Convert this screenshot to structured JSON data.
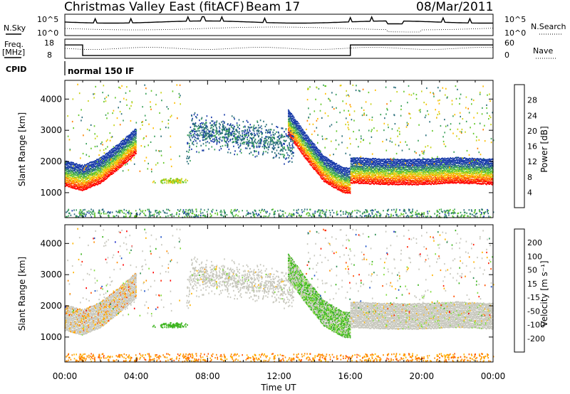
{
  "header": {
    "title": "Christmas Valley East (fitACF)",
    "beam": "Beam 17",
    "date": "08/Mar/2011"
  },
  "status_panels": {
    "nsky_label": "N.Sky",
    "nsky_ticks": [
      "10^5",
      "10^0"
    ],
    "nsearch_label": "N.Search",
    "nsearch_ticks": [
      "10^5",
      "10^0"
    ],
    "freq_label": [
      "Freq.",
      "[MHz]"
    ],
    "freq_ticks": [
      18,
      8
    ],
    "nave_label": "Nave",
    "nave_ticks": [
      60,
      0
    ],
    "cpid_label": "CPID",
    "cpid_text": "normal 150 IF",
    "freq_segments": [
      {
        "start": 0.0,
        "end": 1.0,
        "mhz": 15.2
      },
      {
        "start": 1.0,
        "end": 16.0,
        "mhz": 8.4
      },
      {
        "start": 16.0,
        "end": 24.0,
        "mhz": 15.2
      }
    ]
  },
  "chart_data": [
    {
      "type": "heatmap",
      "panel": "power",
      "xlabel": "",
      "ylabel": "Slant Range [km]",
      "xlim": [
        0,
        24
      ],
      "ylim": [
        200,
        4600
      ],
      "yticks": [
        1000,
        2000,
        3000,
        4000
      ],
      "colorbar_label": "Power [dB]",
      "colorbar_ticks": [
        "4",
        "8",
        "12",
        "16",
        "20",
        "24",
        "28"
      ],
      "colorbar_colors": [
        "#0018ff",
        "#1a3caa",
        "#2a6f7a",
        "#3aa05a",
        "#64c82a",
        "#c8d21a",
        "#ffbe00",
        "#ff8200",
        "#ff3c00",
        "#ff0000"
      ],
      "bands": [
        {
          "name": "dusk",
          "points": [
            [
              0,
              1350
            ],
            [
              1,
              1200
            ],
            [
              2,
              1450
            ],
            [
              3,
              1900
            ],
            [
              4,
              2400
            ]
          ]
        },
        {
          "name": "dawn",
          "points": [
            [
              12.5,
              3000
            ],
            [
              13.5,
              2200
            ],
            [
              14.5,
              1500
            ],
            [
              15.5,
              1150
            ],
            [
              16,
              1100
            ]
          ]
        },
        {
          "name": "day",
          "points": [
            [
              16,
              1450
            ],
            [
              18,
              1400
            ],
            [
              20,
              1400
            ],
            [
              22,
              1450
            ],
            [
              24,
              1400
            ]
          ]
        }
      ],
      "cloud": [
        [
          7,
          3050
        ],
        [
          9,
          2900
        ],
        [
          11,
          2750
        ],
        [
          12.5,
          2550
        ]
      ],
      "patch": [
        6.0,
        1400
      ]
    },
    {
      "type": "heatmap",
      "panel": "velocity",
      "xlabel": "Time UT",
      "ylabel": "Slant Range [km]",
      "xlim": [
        0,
        24
      ],
      "ylim": [
        200,
        4600
      ],
      "xticks": [
        "00:00",
        "04:00",
        "08:00",
        "12:00",
        "16:00",
        "20:00",
        "00:00"
      ],
      "yticks": [
        1000,
        2000,
        3000,
        4000
      ],
      "colorbar_label": "Velocity [m s⁻¹]",
      "colorbar_ticks": [
        "200",
        "100",
        "50",
        "15",
        "-15",
        "-50",
        "-100",
        "-200"
      ],
      "colorbar_colors": [
        "#1a28c8",
        "#1a50c8",
        "#2a8c50",
        "#3cb41e",
        "#82dc3c",
        "#c8c8be",
        "#c8c8be",
        "#ffb400",
        "#ff8c00",
        "#ff5000",
        "#ff1e00",
        "#ff0000"
      ]
    }
  ]
}
